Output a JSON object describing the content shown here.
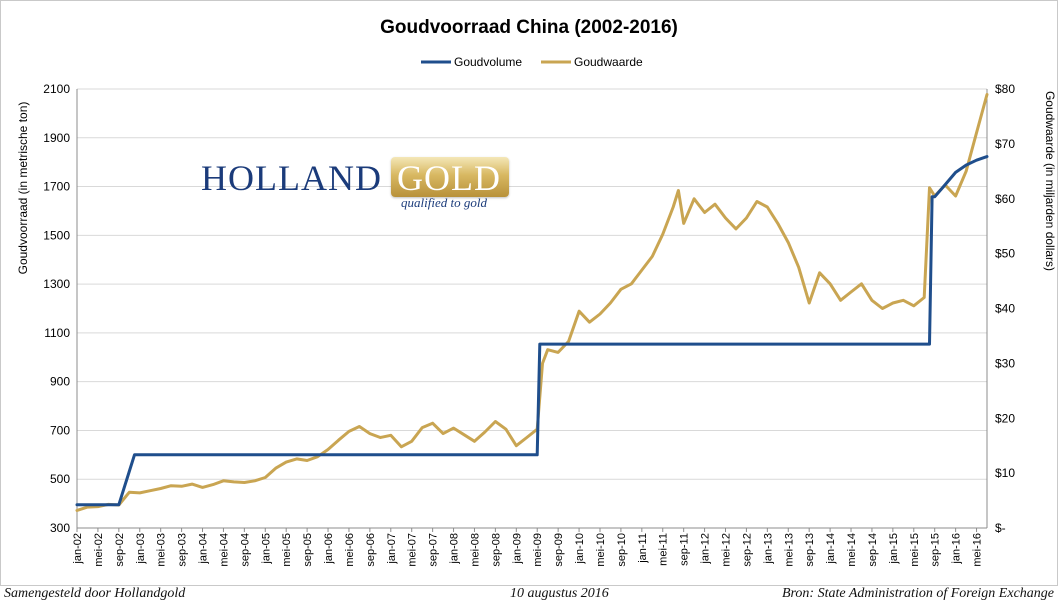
{
  "footer": {
    "left": "Samengesteld door Hollandgold",
    "center": "10 augustus 2016",
    "right": "Bron: State Administration of Foreign Exchange"
  },
  "logo": {
    "holland": "HOLLAND",
    "gold": "GOLD",
    "tagline": "qualified to gold"
  },
  "colors": {
    "volume": "#1f4e8c",
    "value": "#c9a552",
    "grid": "#d9d9d9",
    "axis": "#8c8c8c"
  },
  "chart_data": {
    "type": "line",
    "title": "Goudvoorraad China (2002-2016)",
    "ylabel": "Goudvoorraad (in metrische ton)",
    "y2label": "Goudwaarde (in miljarden dollars)",
    "ylim": [
      300,
      2100
    ],
    "y2lim": [
      0,
      80
    ],
    "yticks": [
      300,
      500,
      700,
      900,
      1100,
      1300,
      1500,
      1700,
      1900,
      2100
    ],
    "y2ticks": [
      "$-",
      "$10",
      "$20",
      "$30",
      "$40",
      "$50",
      "$60",
      "$70",
      "$80"
    ],
    "grid": true,
    "legend_position": "top-center",
    "x_range": [
      0,
      174
    ],
    "categories": [
      "jan-02",
      "mei-02",
      "sep-02",
      "jan-03",
      "mei-03",
      "sep-03",
      "jan-04",
      "mei-04",
      "sep-04",
      "jan-05",
      "mei-05",
      "sep-05",
      "jan-06",
      "mei-06",
      "sep-06",
      "jan-07",
      "mei-07",
      "sep-07",
      "jan-08",
      "mei-08",
      "sep-08",
      "jan-09",
      "mei-09",
      "sep-09",
      "jan-10",
      "mei-10",
      "sep-10",
      "jan-11",
      "mei-11",
      "sep-11",
      "jan-12",
      "mei-12",
      "sep-12",
      "jan-13",
      "mei-13",
      "sep-13",
      "jan-14",
      "mei-14",
      "sep-14",
      "jan-15",
      "mei-15",
      "sep-15",
      "jan-16",
      "mei-16"
    ],
    "series": [
      {
        "name": "Goudvolume",
        "axis": "left",
        "x": [
          0,
          8,
          11,
          88,
          88.5,
          163,
          163.5,
          164,
          166,
          168,
          170,
          172,
          174
        ],
        "values": [
          395,
          395,
          600,
          600,
          1054,
          1054,
          1658,
          1658,
          1708,
          1758,
          1788,
          1808,
          1823
        ]
      },
      {
        "name": "Goudwaarde",
        "axis": "right",
        "x": [
          0,
          2,
          4,
          6,
          8,
          10,
          12,
          14,
          16,
          18,
          20,
          22,
          24,
          26,
          28,
          30,
          32,
          34,
          36,
          38,
          40,
          42,
          44,
          46,
          48,
          50,
          52,
          54,
          56,
          58,
          60,
          62,
          64,
          66,
          68,
          70,
          72,
          74,
          76,
          78,
          80,
          82,
          84,
          86,
          88,
          89,
          90,
          92,
          94,
          96,
          98,
          100,
          102,
          104,
          106,
          108,
          110,
          112,
          114,
          115,
          116,
          118,
          120,
          122,
          124,
          126,
          128,
          130,
          132,
          134,
          136,
          138,
          140,
          142,
          144,
          146,
          148,
          150,
          152,
          154,
          156,
          158,
          160,
          162,
          163,
          164,
          166,
          168,
          170,
          172,
          174
        ],
        "values": [
          3.2,
          3.8,
          3.9,
          4.3,
          4.2,
          6.5,
          6.4,
          6.8,
          7.2,
          7.7,
          7.6,
          8.0,
          7.4,
          7.9,
          8.6,
          8.4,
          8.3,
          8.6,
          9.2,
          10.9,
          12.0,
          12.6,
          12.3,
          13.0,
          14.3,
          16.0,
          17.6,
          18.5,
          17.2,
          16.5,
          16.9,
          14.8,
          15.8,
          18.3,
          19.1,
          17.2,
          18.2,
          17.0,
          15.8,
          17.5,
          19.4,
          18.0,
          15.0,
          16.5,
          18.0,
          30.0,
          32.5,
          32.0,
          34.0,
          39.5,
          37.5,
          39.0,
          41.0,
          43.5,
          44.5,
          47.0,
          49.5,
          53.5,
          58.5,
          61.5,
          55.5,
          60.0,
          57.5,
          59.0,
          56.5,
          54.5,
          56.5,
          59.5,
          58.5,
          55.5,
          52.0,
          47.5,
          41.0,
          46.5,
          44.5,
          41.5,
          43.0,
          44.5,
          41.5,
          40.0,
          41.0,
          41.5,
          40.5,
          42.0,
          62.0,
          60.5,
          62.5,
          60.5,
          65.0,
          72.0,
          79.0
        ]
      }
    ]
  }
}
